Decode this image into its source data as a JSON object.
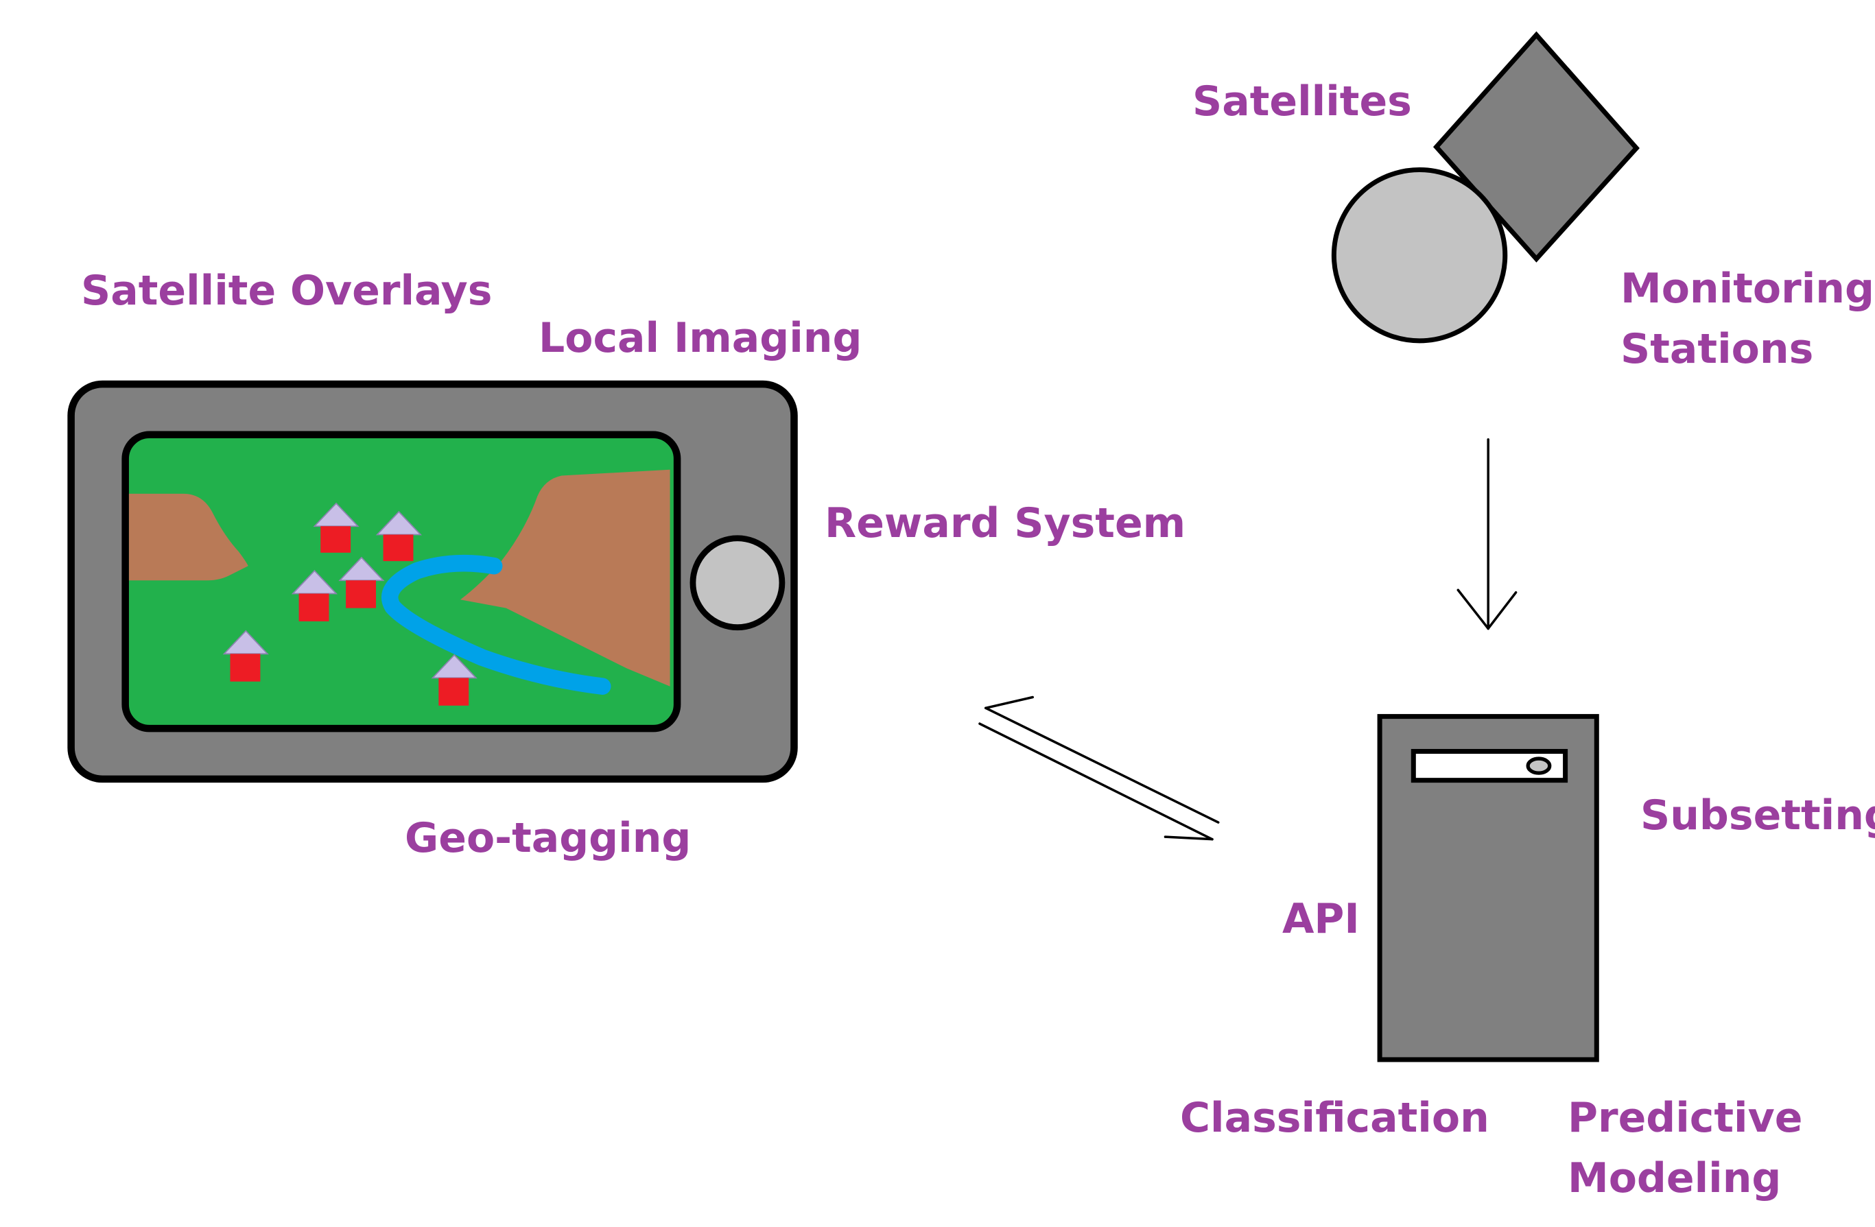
{
  "labels": {
    "satellites": "Satellites",
    "monitoring_line1": "Monitoring",
    "monitoring_line2": "Stations",
    "satellite_overlays": "Satellite Overlays",
    "local_imaging": "Local Imaging",
    "reward_system": "Reward System",
    "geo_tagging": "Geo-tagging",
    "subsetting": "Subsetting",
    "api": "API",
    "classification": "Classification",
    "predictive_line1": "Predictive",
    "predictive_line2": "Modeling"
  },
  "colors": {
    "label_text": "#9b3f9f",
    "device_body": "#808080",
    "map_green": "#22b14c",
    "terrain_brown": "#b97a57",
    "river_blue": "#00a2e8",
    "house_roof": "#c8bfe7",
    "house_wall": "#ed1c24",
    "light_gray": "#c3c3c3",
    "outline": "#000000"
  },
  "icons": {
    "phone": "smartphone-map-icon",
    "satellite_dish": "satellite-dish-icon",
    "monitoring_station": "monitoring-station-icon",
    "server": "server-tower-icon"
  }
}
